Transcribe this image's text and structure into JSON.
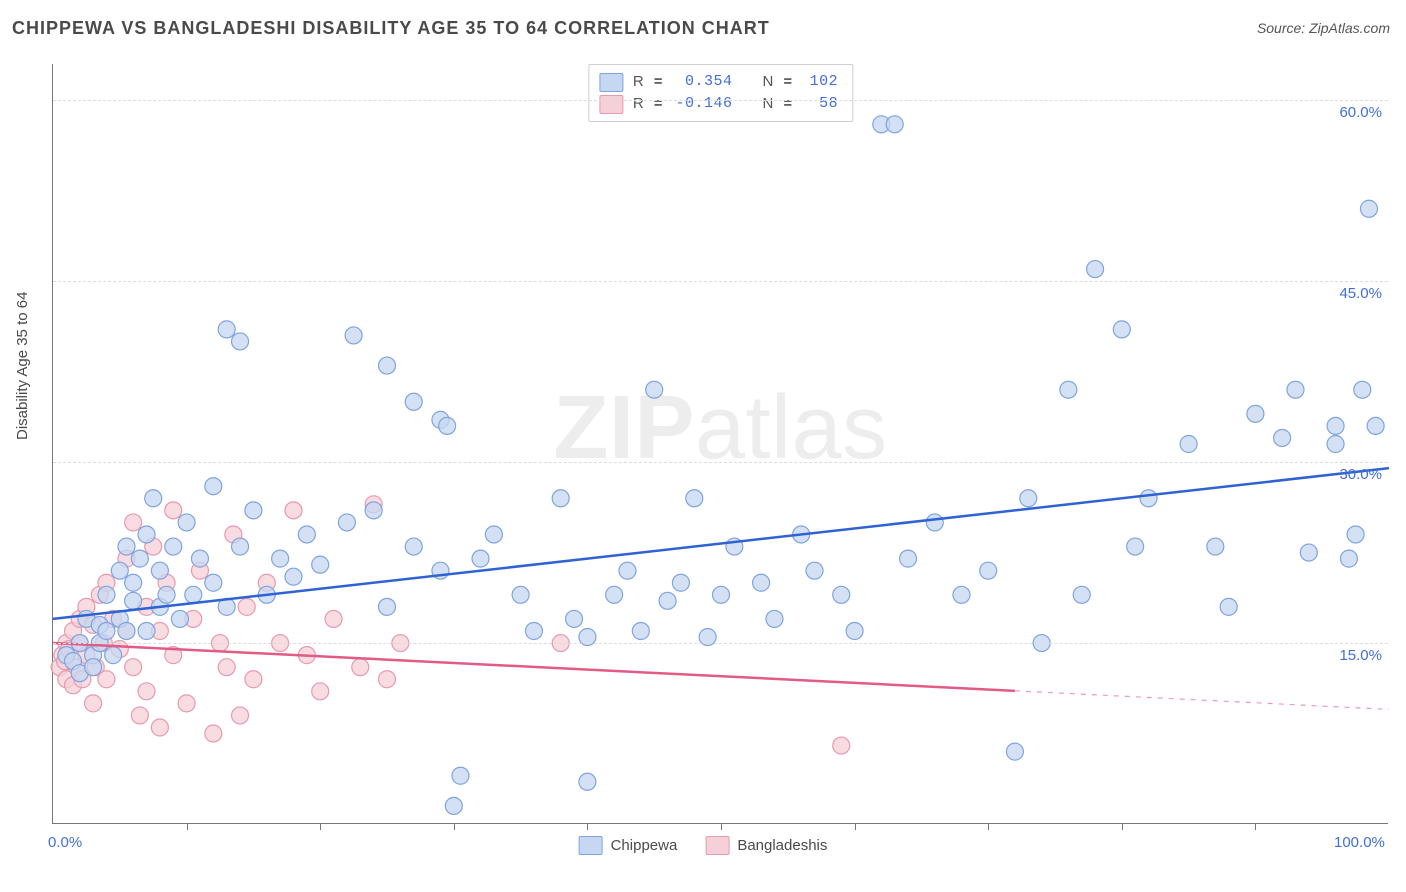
{
  "title": "CHIPPEWA VS BANGLADESHI DISABILITY AGE 35 TO 64 CORRELATION CHART",
  "source_label": "Source:",
  "source_value": "ZipAtlas.com",
  "watermark": {
    "part1": "ZIP",
    "part2": "atlas"
  },
  "chart": {
    "type": "scatter",
    "y_axis_title": "Disability Age 35 to 64",
    "xlim": [
      0,
      100
    ],
    "ylim": [
      0,
      63
    ],
    "x_tick_step": 10,
    "x_ticks_labeled": {
      "0": "0.0%",
      "100": "100.0%"
    },
    "y_gridlines": [
      15,
      30,
      45,
      60
    ],
    "y_labels": {
      "15": "15.0%",
      "30": "30.0%",
      "45": "45.0%",
      "60": "60.0%"
    },
    "background_color": "#ffffff",
    "grid_color": "#dcdcdc",
    "axis_color": "#777777",
    "text_color": "#4a4a4a",
    "value_color": "#416fd6",
    "marker_radius": 8.5,
    "marker_stroke_width": 1.2,
    "trend_line_width": 2.5,
    "series": {
      "chippewa": {
        "label": "Chippewa",
        "fill": "#c6d7f2",
        "stroke": "#7fa4de",
        "R": "0.354",
        "N": "102",
        "trend": {
          "y_at_x0": 17.0,
          "y_at_x100": 29.5,
          "color": "#2f63d4",
          "solid_until_x": 100
        },
        "points": [
          [
            1,
            14
          ],
          [
            1.5,
            13.5
          ],
          [
            2,
            15
          ],
          [
            2,
            12.5
          ],
          [
            2.5,
            17
          ],
          [
            3,
            14
          ],
          [
            3,
            13
          ],
          [
            3.5,
            16.5
          ],
          [
            3.5,
            15
          ],
          [
            4,
            19
          ],
          [
            4,
            16
          ],
          [
            4.5,
            14
          ],
          [
            5,
            21
          ],
          [
            5,
            17
          ],
          [
            5.5,
            16
          ],
          [
            5.5,
            23
          ],
          [
            6,
            18.5
          ],
          [
            6,
            20
          ],
          [
            6.5,
            22
          ],
          [
            7,
            16
          ],
          [
            7,
            24
          ],
          [
            7.5,
            27
          ],
          [
            8,
            18
          ],
          [
            8,
            21
          ],
          [
            8.5,
            19
          ],
          [
            9,
            23
          ],
          [
            9.5,
            17
          ],
          [
            10,
            25
          ],
          [
            10.5,
            19
          ],
          [
            11,
            22
          ],
          [
            12,
            20
          ],
          [
            12,
            28
          ],
          [
            13,
            18
          ],
          [
            13,
            41
          ],
          [
            14,
            23
          ],
          [
            14,
            40
          ],
          [
            15,
            26
          ],
          [
            16,
            19
          ],
          [
            17,
            22
          ],
          [
            18,
            20.5
          ],
          [
            19,
            24
          ],
          [
            20,
            21.5
          ],
          [
            22,
            25
          ],
          [
            22.5,
            40.5
          ],
          [
            24,
            26
          ],
          [
            25,
            18
          ],
          [
            25,
            38
          ],
          [
            27,
            23
          ],
          [
            27,
            35
          ],
          [
            29,
            33.5
          ],
          [
            29.5,
            33
          ],
          [
            29,
            21
          ],
          [
            30,
            1.5
          ],
          [
            30.5,
            4
          ],
          [
            32,
            22
          ],
          [
            33,
            24
          ],
          [
            35,
            19
          ],
          [
            36,
            16
          ],
          [
            38,
            27
          ],
          [
            39,
            17
          ],
          [
            40,
            15.5
          ],
          [
            40,
            3.5
          ],
          [
            42,
            19
          ],
          [
            43,
            21
          ],
          [
            44,
            16
          ],
          [
            45,
            36
          ],
          [
            46,
            18.5
          ],
          [
            47,
            20
          ],
          [
            48,
            27
          ],
          [
            49,
            15.5
          ],
          [
            50,
            19
          ],
          [
            51,
            23
          ],
          [
            53,
            20
          ],
          [
            54,
            17
          ],
          [
            56,
            24
          ],
          [
            57,
            21
          ],
          [
            59,
            19
          ],
          [
            60,
            16
          ],
          [
            62,
            58
          ],
          [
            63,
            58
          ],
          [
            64,
            22
          ],
          [
            66,
            25
          ],
          [
            68,
            19
          ],
          [
            70,
            21
          ],
          [
            72,
            6
          ],
          [
            73,
            27
          ],
          [
            74,
            15
          ],
          [
            76,
            36
          ],
          [
            77,
            19
          ],
          [
            78,
            46
          ],
          [
            80,
            41
          ],
          [
            81,
            23
          ],
          [
            82,
            27
          ],
          [
            85,
            31.5
          ],
          [
            87,
            23
          ],
          [
            88,
            18
          ],
          [
            90,
            34
          ],
          [
            92,
            32
          ],
          [
            93,
            36
          ],
          [
            94,
            22.5
          ],
          [
            96,
            31.5
          ],
          [
            96,
            33
          ],
          [
            97,
            22
          ],
          [
            97.5,
            24
          ],
          [
            98,
            36
          ],
          [
            98.5,
            51
          ],
          [
            99,
            33
          ]
        ]
      },
      "bangladeshi": {
        "label": "Bangladeshis",
        "fill": "#f6d0d8",
        "stroke": "#e79ab0",
        "R": "-0.146",
        "N": "58",
        "trend": {
          "y_at_x0": 15.0,
          "y_at_x100": 9.5,
          "color": "#e15b84",
          "solid_until_x": 72
        },
        "points": [
          [
            0.5,
            13
          ],
          [
            0.7,
            14
          ],
          [
            0.9,
            13.5
          ],
          [
            1,
            15
          ],
          [
            1,
            12
          ],
          [
            1.2,
            14.5
          ],
          [
            1.5,
            16
          ],
          [
            1.5,
            11.5
          ],
          [
            1.8,
            13
          ],
          [
            2,
            17
          ],
          [
            2,
            15
          ],
          [
            2.2,
            12
          ],
          [
            2.5,
            14
          ],
          [
            2.5,
            18
          ],
          [
            3,
            16.5
          ],
          [
            3,
            10
          ],
          [
            3.2,
            13
          ],
          [
            3.5,
            19
          ],
          [
            3.8,
            15
          ],
          [
            4,
            12
          ],
          [
            4,
            20
          ],
          [
            4.5,
            17
          ],
          [
            5,
            14.5
          ],
          [
            5.5,
            16
          ],
          [
            5.5,
            22
          ],
          [
            6,
            13
          ],
          [
            6,
            25
          ],
          [
            6.5,
            9
          ],
          [
            7,
            18
          ],
          [
            7,
            11
          ],
          [
            7.5,
            23
          ],
          [
            8,
            16
          ],
          [
            8,
            8
          ],
          [
            8.5,
            20
          ],
          [
            9,
            14
          ],
          [
            9,
            26
          ],
          [
            10,
            10
          ],
          [
            10.5,
            17
          ],
          [
            11,
            21
          ],
          [
            12,
            7.5
          ],
          [
            12.5,
            15
          ],
          [
            13,
            13
          ],
          [
            13.5,
            24
          ],
          [
            14,
            9
          ],
          [
            14.5,
            18
          ],
          [
            15,
            12
          ],
          [
            16,
            20
          ],
          [
            17,
            15
          ],
          [
            18,
            26
          ],
          [
            19,
            14
          ],
          [
            20,
            11
          ],
          [
            21,
            17
          ],
          [
            23,
            13
          ],
          [
            24,
            26.5
          ],
          [
            25,
            12
          ],
          [
            26,
            15
          ],
          [
            38,
            15
          ],
          [
            59,
            6.5
          ]
        ]
      }
    }
  },
  "legend_box": {
    "R_label": "R",
    "N_label": "N",
    "equals": "="
  },
  "bottom_legend": {
    "series1": "Chippewa",
    "series2": "Bangladeshis"
  }
}
